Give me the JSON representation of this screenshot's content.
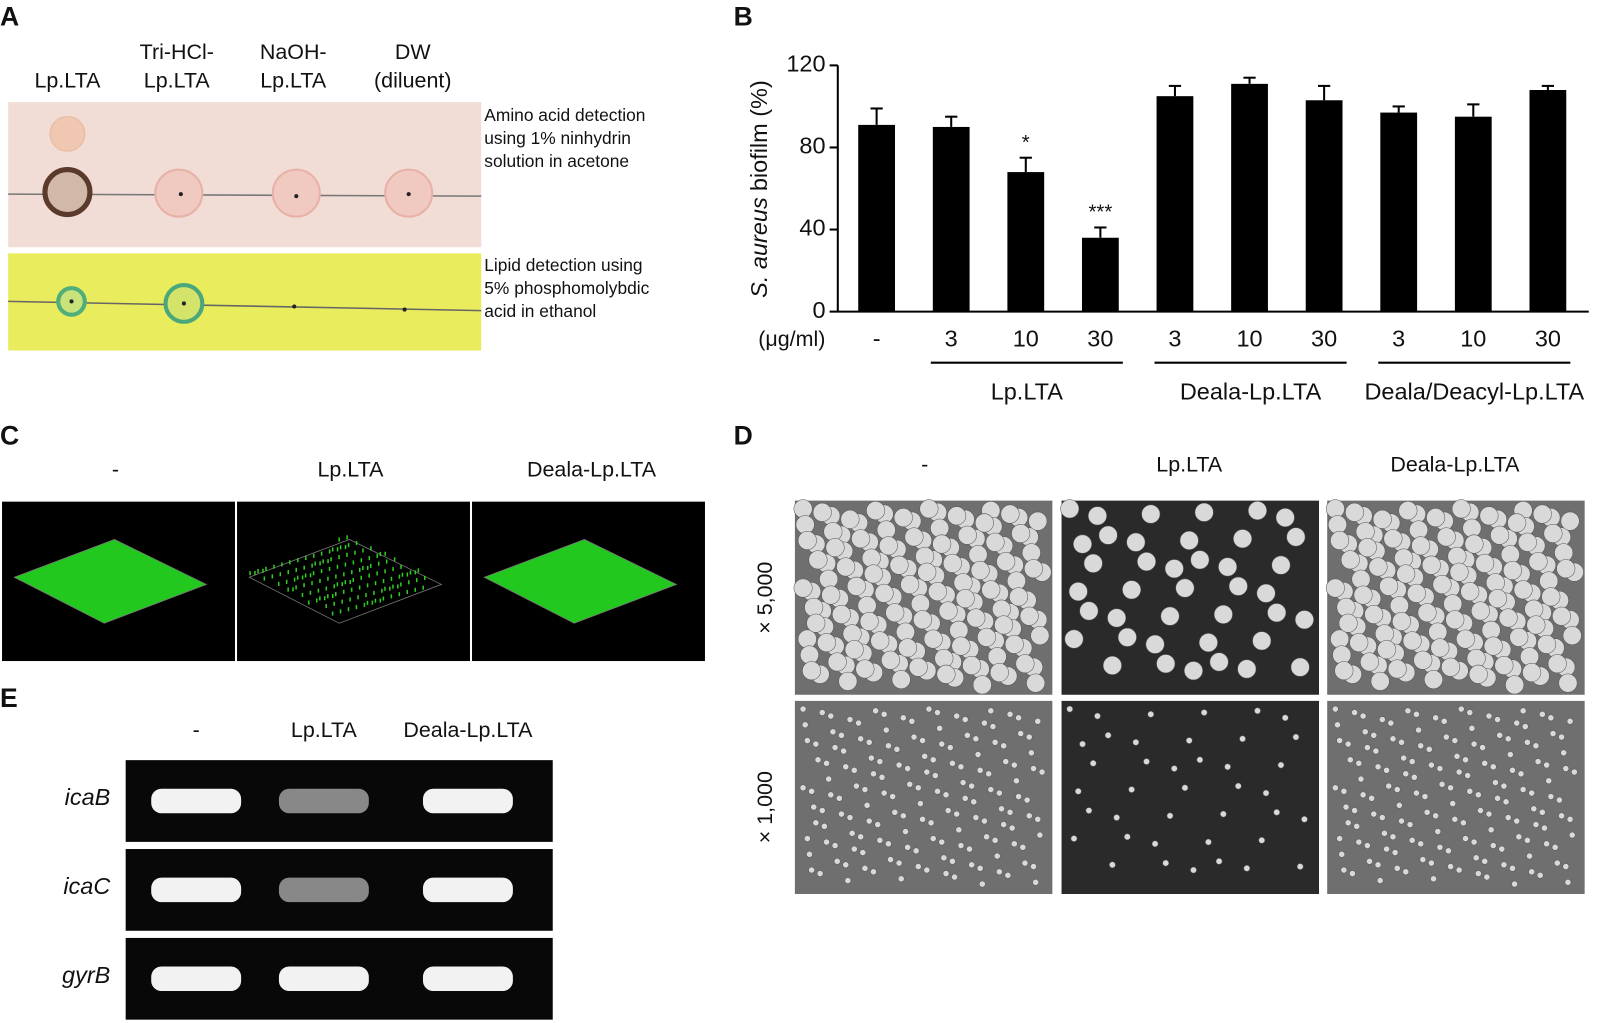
{
  "panel_a": {
    "label": "A",
    "columns": [
      [
        "Lp.LTA"
      ],
      [
        "Tri-HCl-",
        "Lp.LTA"
      ],
      [
        "NaOH-",
        "Lp.LTA"
      ],
      [
        "DW",
        "(diluent)"
      ]
    ],
    "notes": [
      [
        "Amino acid detection",
        "using 1% ninhydrin",
        "solution in acetone"
      ],
      [
        "Lipid detection using",
        "5% phosphomolybdic",
        "acid in ethanol"
      ]
    ]
  },
  "panel_b": {
    "label": "B"
  },
  "chart_data": {
    "type": "bar",
    "ylabel_italic": "S. aureus",
    "ylabel": "biofilm (%)",
    "unit_label": "(μg/ml)",
    "categories": [
      "-",
      "3",
      "10",
      "30",
      "3",
      "10",
      "30",
      "3",
      "10",
      "30"
    ],
    "values": [
      91,
      90,
      68,
      36,
      105,
      111,
      103,
      97,
      95,
      108
    ],
    "errors": [
      8,
      5,
      7,
      5,
      5,
      3,
      7,
      3,
      6,
      2
    ],
    "annotations": [
      null,
      null,
      "*",
      "***",
      null,
      null,
      null,
      null,
      null,
      null
    ],
    "group_labels": [
      "Lp.LTA",
      "Deala-Lp.LTA",
      "Deala/Deacyl-Lp.LTA"
    ],
    "color": "#000000",
    "ylim": [
      0,
      120
    ],
    "yticks": [
      0,
      40,
      80,
      120
    ]
  },
  "panel_c": {
    "label": "C",
    "columns": [
      "-",
      "Lp.LTA",
      "Deala-Lp.LTA"
    ]
  },
  "panel_d": {
    "label": "D",
    "columns": [
      "-",
      "Lp.LTA",
      "Deala-Lp.LTA"
    ],
    "rows": [
      "× 5,000",
      "× 1,000"
    ]
  },
  "panel_e": {
    "label": "E",
    "columns": [
      "-",
      "Lp.LTA",
      "Deala-Lp.LTA"
    ],
    "genes": [
      "icaB",
      "icaC",
      "gyrB"
    ]
  }
}
